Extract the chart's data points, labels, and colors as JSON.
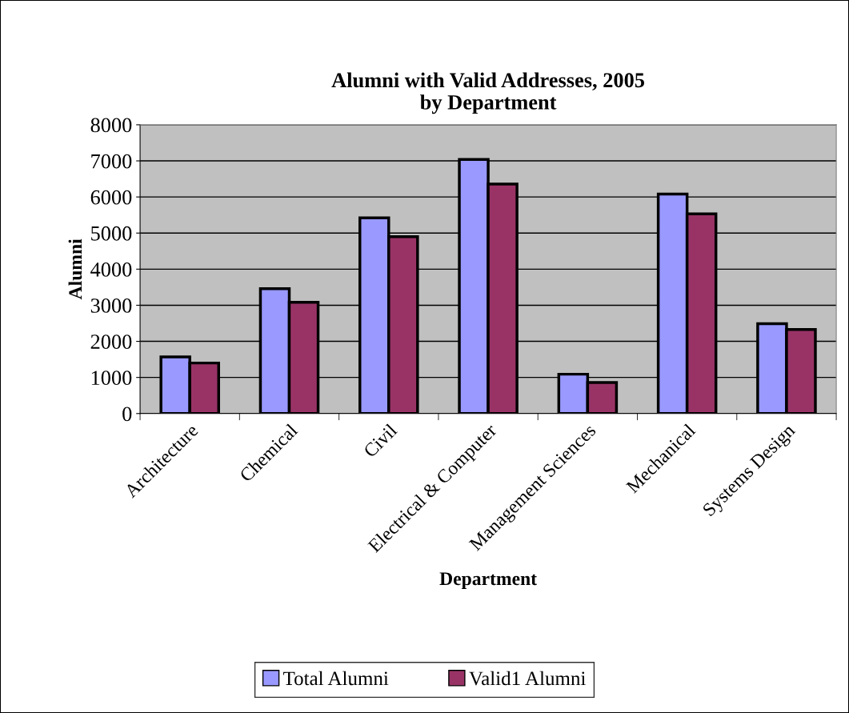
{
  "chart_data": {
    "type": "bar",
    "title": "Alumni with Valid Addresses, 2005\nby Department",
    "xlabel": "Department",
    "ylabel": "Alumni",
    "categories": [
      "Architecture",
      "Chemical",
      "Civil",
      "Electrical & Computer",
      "Management Sciences",
      "Mechanical",
      "Systems Design"
    ],
    "series": [
      {
        "name": "Total Alumni",
        "color": "#9999ff",
        "values": [
          1570,
          3460,
          5420,
          7040,
          1090,
          6080,
          2490
        ]
      },
      {
        "name": "Valid1 Alumni",
        "color": "#993366",
        "values": [
          1400,
          3080,
          4900,
          6360,
          860,
          5530,
          2330
        ]
      }
    ],
    "ylim": [
      0,
      8000
    ],
    "yticks": [
      0,
      1000,
      2000,
      3000,
      4000,
      5000,
      6000,
      7000,
      8000
    ],
    "grid": "y",
    "legend": "bottom"
  }
}
